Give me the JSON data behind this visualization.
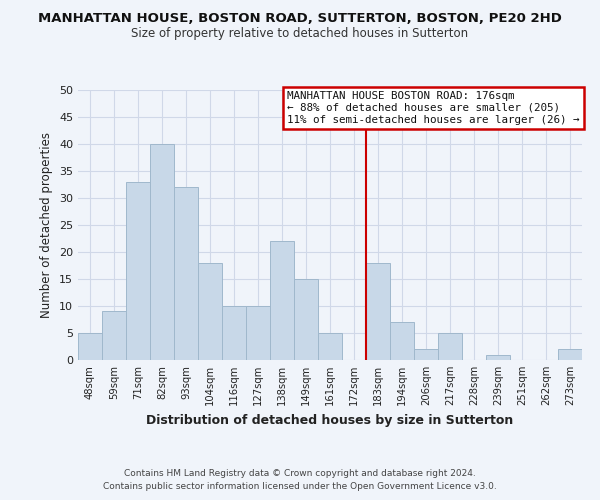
{
  "title": "MANHATTAN HOUSE, BOSTON ROAD, SUTTERTON, BOSTON, PE20 2HD",
  "subtitle": "Size of property relative to detached houses in Sutterton",
  "xlabel": "Distribution of detached houses by size in Sutterton",
  "ylabel": "Number of detached properties",
  "bar_labels": [
    "48sqm",
    "59sqm",
    "71sqm",
    "82sqm",
    "93sqm",
    "104sqm",
    "116sqm",
    "127sqm",
    "138sqm",
    "149sqm",
    "161sqm",
    "172sqm",
    "183sqm",
    "194sqm",
    "206sqm",
    "217sqm",
    "228sqm",
    "239sqm",
    "251sqm",
    "262sqm",
    "273sqm"
  ],
  "bar_values": [
    5,
    9,
    33,
    40,
    32,
    18,
    10,
    10,
    22,
    15,
    5,
    0,
    18,
    7,
    2,
    5,
    0,
    1,
    0,
    0,
    2
  ],
  "bar_color": "#c8d8e8",
  "bar_edge_color": "#a0b8cc",
  "vline_color": "#cc0000",
  "ylim": [
    0,
    50
  ],
  "yticks": [
    0,
    5,
    10,
    15,
    20,
    25,
    30,
    35,
    40,
    45,
    50
  ],
  "annotation_title": "MANHATTAN HOUSE BOSTON ROAD: 176sqm",
  "annotation_line1": "← 88% of detached houses are smaller (205)",
  "annotation_line2": "11% of semi-detached houses are larger (26) →",
  "footer_line1": "Contains HM Land Registry data © Crown copyright and database right 2024.",
  "footer_line2": "Contains public sector information licensed under the Open Government Licence v3.0.",
  "grid_color": "#d0d8e8",
  "background_color": "#f0f4fa"
}
